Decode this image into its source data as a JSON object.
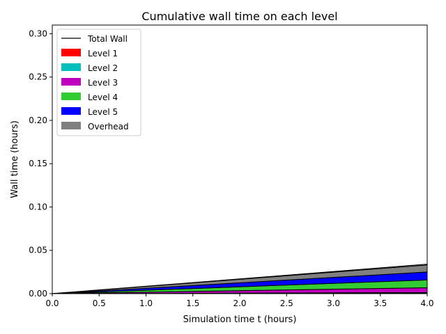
{
  "chart_data": {
    "type": "area",
    "title": "Cumulative wall time on each level",
    "xlabel": "Simulation time t (hours)",
    "ylabel": "Wall time (hours)",
    "xlim": [
      0,
      4
    ],
    "ylim": [
      0,
      0.31
    ],
    "xticks": [
      "0.0",
      "0.5",
      "1.0",
      "1.5",
      "2.0",
      "2.5",
      "3.0",
      "3.5",
      "4.0"
    ],
    "yticks": [
      "0.00",
      "0.05",
      "0.10",
      "0.15",
      "0.20",
      "0.25",
      "0.30"
    ],
    "grid": false,
    "legend_position": "top-left",
    "x": [
      0,
      4
    ],
    "series": [
      {
        "name": "Level 1",
        "color": "#ff0000",
        "values": [
          0,
          0.0005
        ]
      },
      {
        "name": "Level 2",
        "color": "#00bfbf",
        "values": [
          0,
          0.0008
        ]
      },
      {
        "name": "Level 3",
        "color": "#bf00bf",
        "values": [
          0,
          0.0055
        ]
      },
      {
        "name": "Level 4",
        "color": "#33cc33",
        "values": [
          0,
          0.009
        ]
      },
      {
        "name": "Level 5",
        "color": "#0000ff",
        "values": [
          0,
          0.0092
        ]
      },
      {
        "name": "Overhead",
        "color": "#808080",
        "values": [
          0,
          0.008
        ]
      }
    ],
    "total": {
      "name": "Total Wall",
      "color": "#000000",
      "values": [
        0,
        0.034
      ]
    }
  }
}
